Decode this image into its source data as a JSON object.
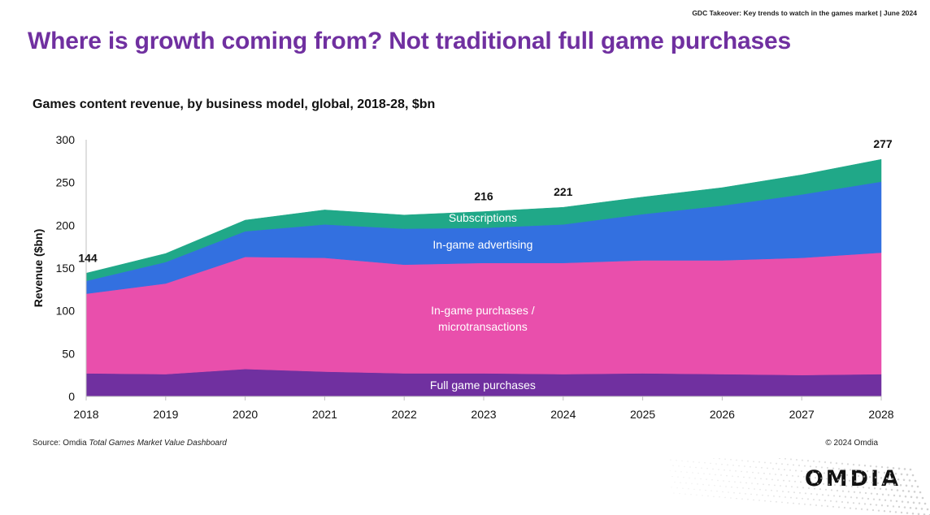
{
  "header": {
    "note": "GDC Takeover: Key trends to watch in the games market | June 2024",
    "title": "Where is growth coming from? Not traditional full game purchases"
  },
  "chart_data": {
    "type": "area",
    "stacked": true,
    "title": "Games content revenue, by business model, global, 2018-28, $bn",
    "xlabel": "",
    "ylabel": "Revenue ($bn)",
    "ylim": [
      0,
      300
    ],
    "yticks": [
      0,
      50,
      100,
      150,
      200,
      250,
      300
    ],
    "grid": false,
    "legend": "none (labels drawn inside areas)",
    "x": [
      "2018",
      "2019",
      "2020",
      "2021",
      "2022",
      "2023",
      "2024",
      "2025",
      "2026",
      "2027",
      "2028"
    ],
    "series": [
      {
        "name": "Full game purchases",
        "color": "#7030a0",
        "values": [
          27,
          26,
          32,
          29,
          27,
          27,
          26,
          27,
          26,
          25,
          26
        ]
      },
      {
        "name": "In-game purchases / microtransactions",
        "color": "#e94fac",
        "values": [
          93,
          106,
          131,
          133,
          127,
          129,
          130,
          132,
          133,
          137,
          142
        ]
      },
      {
        "name": "In-game advertising",
        "color": "#3370e0",
        "values": [
          15,
          25,
          30,
          39,
          42,
          41,
          45,
          54,
          64,
          74,
          83
        ]
      },
      {
        "name": "Subscriptions",
        "color": "#20a888",
        "values": [
          9,
          10,
          13,
          17,
          16,
          19,
          20,
          20,
          21,
          23,
          26
        ]
      }
    ],
    "area_labels": [
      {
        "series": 3,
        "lines": [
          "Subscriptions"
        ]
      },
      {
        "series": 2,
        "lines": [
          "In-game advertising"
        ]
      },
      {
        "series": 1,
        "lines": [
          "In-game purchases /",
          "microtransactions"
        ]
      },
      {
        "series": 0,
        "lines": [
          "Full game purchases"
        ]
      }
    ],
    "total_labels": [
      {
        "x": "2018",
        "value": "144"
      },
      {
        "x": "2023",
        "value": "216"
      },
      {
        "x": "2024",
        "value": "221"
      },
      {
        "x": "2028",
        "value": "277"
      }
    ]
  },
  "footer": {
    "source_prefix": "Source: Omdia ",
    "source_title": "Total Games Market Value Dashboard",
    "copyright": "© 2024 Omdia",
    "logo": "OMDIA"
  }
}
